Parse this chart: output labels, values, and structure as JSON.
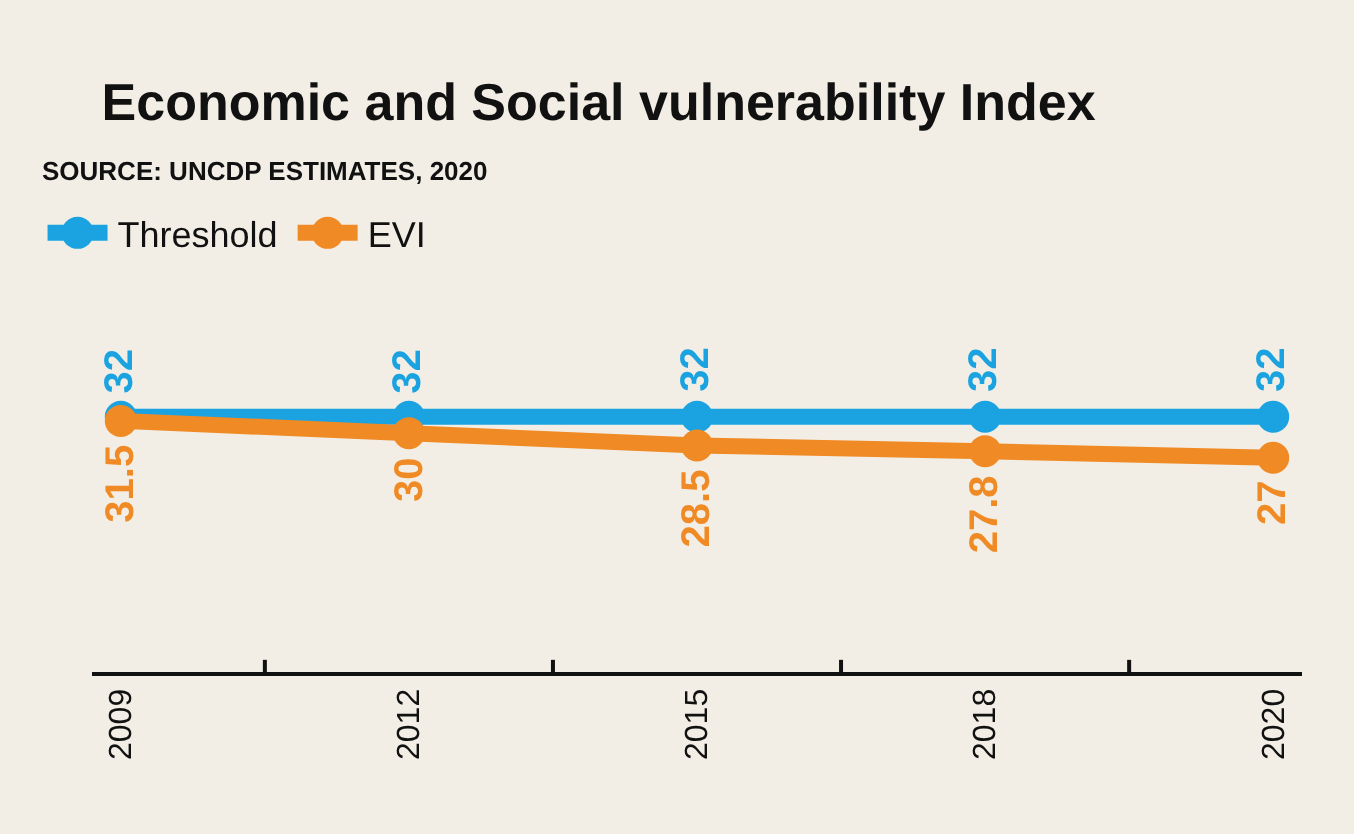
{
  "chart_data": {
    "type": "line",
    "title": "Economic and Social vulnerability Index",
    "subtitle": "SOURCE: UNCDP ESTIMATES, 2020",
    "categories": [
      "2009",
      "2012",
      "2015",
      "2018",
      "2020"
    ],
    "series": [
      {
        "name": "Threshold",
        "color": "#1aa3e0",
        "values": [
          32,
          32,
          32,
          32,
          32
        ]
      },
      {
        "name": "EVI",
        "color": "#f08a24",
        "values": [
          31.5,
          30,
          28.5,
          27.8,
          27
        ]
      }
    ],
    "data_labels": true,
    "marker": "circle",
    "line_style": "solid",
    "grid": false,
    "legend": "top left"
  }
}
